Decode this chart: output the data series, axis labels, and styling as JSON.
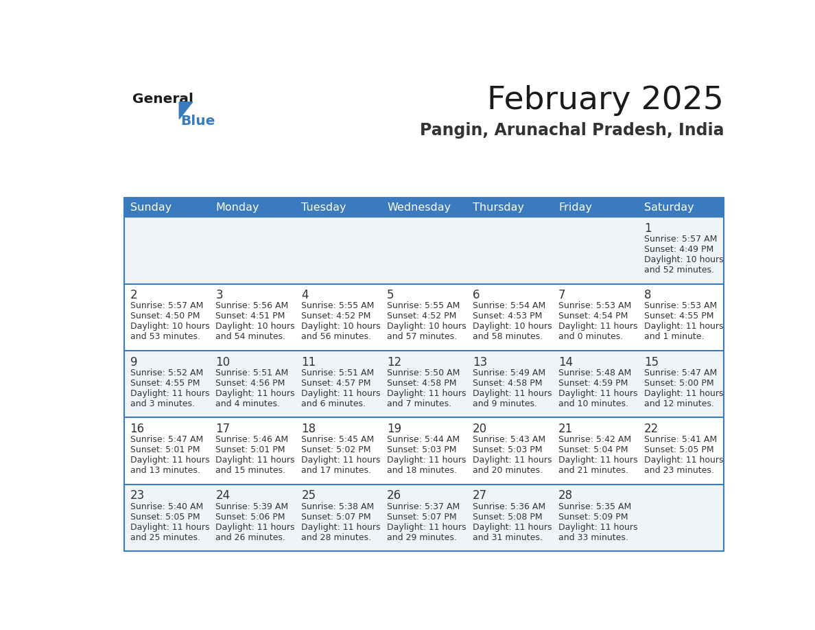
{
  "title": "February 2025",
  "subtitle": "Pangin, Arunachal Pradesh, India",
  "header_color": "#3a7abf",
  "header_text_color": "#ffffff",
  "cell_bg_even": "#f0f4f8",
  "cell_bg_odd": "#ffffff",
  "day_headers": [
    "Sunday",
    "Monday",
    "Tuesday",
    "Wednesday",
    "Thursday",
    "Friday",
    "Saturday"
  ],
  "calendar_data": [
    [
      null,
      null,
      null,
      null,
      null,
      null,
      {
        "day": 1,
        "sunrise": "5:57 AM",
        "sunset": "4:49 PM",
        "daylight_line1": "10 hours",
        "daylight_line2": "and 52 minutes."
      }
    ],
    [
      {
        "day": 2,
        "sunrise": "5:57 AM",
        "sunset": "4:50 PM",
        "daylight_line1": "10 hours",
        "daylight_line2": "and 53 minutes."
      },
      {
        "day": 3,
        "sunrise": "5:56 AM",
        "sunset": "4:51 PM",
        "daylight_line1": "10 hours",
        "daylight_line2": "and 54 minutes."
      },
      {
        "day": 4,
        "sunrise": "5:55 AM",
        "sunset": "4:52 PM",
        "daylight_line1": "10 hours",
        "daylight_line2": "and 56 minutes."
      },
      {
        "day": 5,
        "sunrise": "5:55 AM",
        "sunset": "4:52 PM",
        "daylight_line1": "10 hours",
        "daylight_line2": "and 57 minutes."
      },
      {
        "day": 6,
        "sunrise": "5:54 AM",
        "sunset": "4:53 PM",
        "daylight_line1": "10 hours",
        "daylight_line2": "and 58 minutes."
      },
      {
        "day": 7,
        "sunrise": "5:53 AM",
        "sunset": "4:54 PM",
        "daylight_line1": "11 hours",
        "daylight_line2": "and 0 minutes."
      },
      {
        "day": 8,
        "sunrise": "5:53 AM",
        "sunset": "4:55 PM",
        "daylight_line1": "11 hours",
        "daylight_line2": "and 1 minute."
      }
    ],
    [
      {
        "day": 9,
        "sunrise": "5:52 AM",
        "sunset": "4:55 PM",
        "daylight_line1": "11 hours",
        "daylight_line2": "and 3 minutes."
      },
      {
        "day": 10,
        "sunrise": "5:51 AM",
        "sunset": "4:56 PM",
        "daylight_line1": "11 hours",
        "daylight_line2": "and 4 minutes."
      },
      {
        "day": 11,
        "sunrise": "5:51 AM",
        "sunset": "4:57 PM",
        "daylight_line1": "11 hours",
        "daylight_line2": "and 6 minutes."
      },
      {
        "day": 12,
        "sunrise": "5:50 AM",
        "sunset": "4:58 PM",
        "daylight_line1": "11 hours",
        "daylight_line2": "and 7 minutes."
      },
      {
        "day": 13,
        "sunrise": "5:49 AM",
        "sunset": "4:58 PM",
        "daylight_line1": "11 hours",
        "daylight_line2": "and 9 minutes."
      },
      {
        "day": 14,
        "sunrise": "5:48 AM",
        "sunset": "4:59 PM",
        "daylight_line1": "11 hours",
        "daylight_line2": "and 10 minutes."
      },
      {
        "day": 15,
        "sunrise": "5:47 AM",
        "sunset": "5:00 PM",
        "daylight_line1": "11 hours",
        "daylight_line2": "and 12 minutes."
      }
    ],
    [
      {
        "day": 16,
        "sunrise": "5:47 AM",
        "sunset": "5:01 PM",
        "daylight_line1": "11 hours",
        "daylight_line2": "and 13 minutes."
      },
      {
        "day": 17,
        "sunrise": "5:46 AM",
        "sunset": "5:01 PM",
        "daylight_line1": "11 hours",
        "daylight_line2": "and 15 minutes."
      },
      {
        "day": 18,
        "sunrise": "5:45 AM",
        "sunset": "5:02 PM",
        "daylight_line1": "11 hours",
        "daylight_line2": "and 17 minutes."
      },
      {
        "day": 19,
        "sunrise": "5:44 AM",
        "sunset": "5:03 PM",
        "daylight_line1": "11 hours",
        "daylight_line2": "and 18 minutes."
      },
      {
        "day": 20,
        "sunrise": "5:43 AM",
        "sunset": "5:03 PM",
        "daylight_line1": "11 hours",
        "daylight_line2": "and 20 minutes."
      },
      {
        "day": 21,
        "sunrise": "5:42 AM",
        "sunset": "5:04 PM",
        "daylight_line1": "11 hours",
        "daylight_line2": "and 21 minutes."
      },
      {
        "day": 22,
        "sunrise": "5:41 AM",
        "sunset": "5:05 PM",
        "daylight_line1": "11 hours",
        "daylight_line2": "and 23 minutes."
      }
    ],
    [
      {
        "day": 23,
        "sunrise": "5:40 AM",
        "sunset": "5:05 PM",
        "daylight_line1": "11 hours",
        "daylight_line2": "and 25 minutes."
      },
      {
        "day": 24,
        "sunrise": "5:39 AM",
        "sunset": "5:06 PM",
        "daylight_line1": "11 hours",
        "daylight_line2": "and 26 minutes."
      },
      {
        "day": 25,
        "sunrise": "5:38 AM",
        "sunset": "5:07 PM",
        "daylight_line1": "11 hours",
        "daylight_line2": "and 28 minutes."
      },
      {
        "day": 26,
        "sunrise": "5:37 AM",
        "sunset": "5:07 PM",
        "daylight_line1": "11 hours",
        "daylight_line2": "and 29 minutes."
      },
      {
        "day": 27,
        "sunrise": "5:36 AM",
        "sunset": "5:08 PM",
        "daylight_line1": "11 hours",
        "daylight_line2": "and 31 minutes."
      },
      {
        "day": 28,
        "sunrise": "5:35 AM",
        "sunset": "5:09 PM",
        "daylight_line1": "11 hours",
        "daylight_line2": "and 33 minutes."
      },
      null
    ]
  ],
  "border_color": "#3a7abf",
  "text_color": "#333333",
  "title_fontsize": 34,
  "subtitle_fontsize": 17,
  "header_fontsize": 11.5,
  "day_num_fontsize": 12,
  "cell_text_fontsize": 9.0
}
